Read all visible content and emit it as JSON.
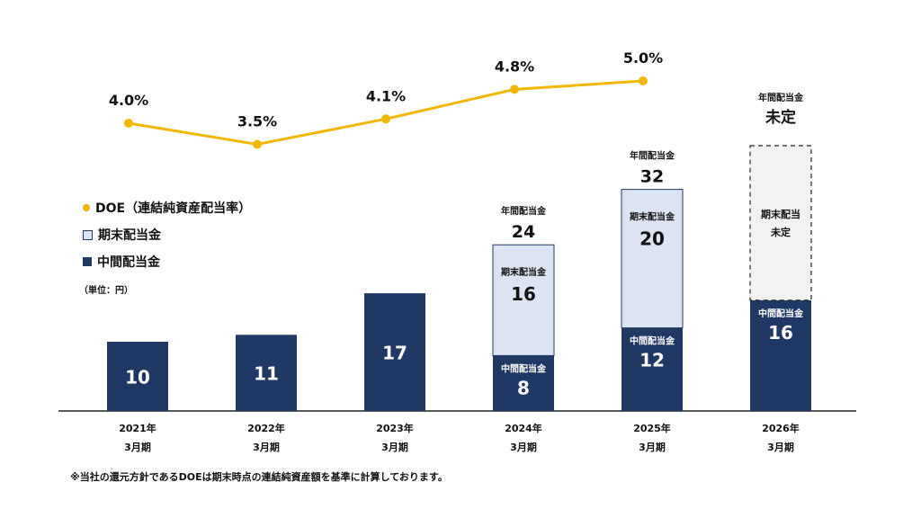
{
  "chart_data": {
    "type": "bar",
    "categories": [
      {
        "year": "2021年",
        "period": "3月期"
      },
      {
        "year": "2022年",
        "period": "3月期"
      },
      {
        "year": "2023年",
        "period": "3月期"
      },
      {
        "year": "2024年",
        "period": "3月期"
      },
      {
        "year": "2025年",
        "period": "3月期"
      },
      {
        "year": "2026年",
        "period": "3月期"
      }
    ],
    "series": [
      {
        "name": "中間配当金",
        "values": [
          10,
          11,
          17,
          8,
          12,
          16
        ]
      },
      {
        "name": "期末配当金",
        "values": [
          null,
          null,
          null,
          16,
          20,
          null
        ]
      }
    ],
    "annual_dividend": [
      null,
      null,
      null,
      24,
      32,
      null
    ],
    "doe": {
      "name": "DOE（連結純資産配当率）",
      "values": [
        4.0,
        3.5,
        4.1,
        4.8,
        5.0,
        null
      ],
      "labels": [
        "4.0%",
        "3.5%",
        "4.1%",
        "4.8%",
        "5.0%",
        ""
      ]
    },
    "forecast": {
      "year_index": 5,
      "interim_value": 16,
      "annual_label": "未定",
      "year_end_label": "期末配当",
      "year_end_value_label": "未定"
    },
    "labels": {
      "interim": "中間配当金",
      "year_end": "期末配当金",
      "annual": "年間配当金"
    },
    "unit": "（単位：円）",
    "footnote": "※当社の還元方針であるDOEは期末時点の連結純資産額を基準に計算しております。",
    "legend_position": "left",
    "colors": {
      "interim": "#1F3864",
      "year_end": "#DCE4F4",
      "forecast": "#F2F2F2",
      "doe": "#F2B705"
    }
  }
}
